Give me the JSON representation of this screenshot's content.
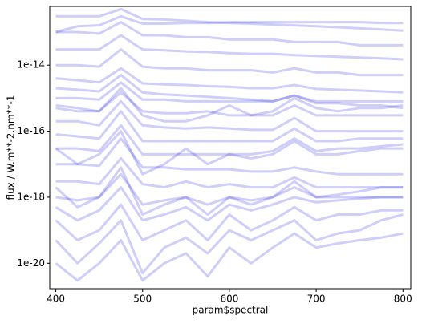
{
  "chart_data": {
    "type": "line",
    "xlabel": "param$spectral",
    "ylabel": "flux / W.m**-2.nm**-1",
    "x": [
      400,
      425,
      450,
      475,
      500,
      525,
      550,
      575,
      600,
      625,
      650,
      675,
      700,
      725,
      750,
      775,
      800
    ],
    "xlim": [
      393,
      809
    ],
    "xticks": [
      400,
      500,
      600,
      700,
      800
    ],
    "ylim": [
      1.7e-21,
      6e-13
    ],
    "yticks": [
      1e-14,
      1e-16,
      1e-18,
      1e-20
    ],
    "log_y": true,
    "color": "#2020e0",
    "series": [
      {
        "values": [
          3e-13,
          3e-13,
          3e-13,
          5e-13,
          2.5e-13,
          2.4e-13,
          2.2e-13,
          2e-13,
          1.9e-13,
          1.8e-13,
          1.7e-13,
          1.6e-13,
          1.5e-13,
          1.4e-13,
          1.3e-13,
          1.2e-13,
          1.1e-13
        ]
      },
      {
        "values": [
          1e-13,
          1e-13,
          9e-14,
          2e-13,
          8e-14,
          8e-14,
          7e-14,
          7e-14,
          6e-14,
          6e-14,
          6e-14,
          5e-14,
          5e-14,
          5e-14,
          4e-14,
          4e-14,
          4e-14
        ]
      },
      {
        "values": [
          3e-14,
          3e-14,
          3e-14,
          8e-14,
          3e-14,
          2.8e-14,
          2.6e-14,
          2.5e-14,
          2.3e-14,
          2.2e-14,
          2.2e-14,
          2e-14,
          1.9e-14,
          1.8e-14,
          1.7e-14,
          1.6e-14,
          1.5e-14
        ]
      },
      {
        "values": [
          1e-14,
          1e-14,
          9e-15,
          3e-14,
          9e-15,
          8e-15,
          8e-15,
          7e-15,
          7e-15,
          7e-15,
          6e-15,
          8e-15,
          6e-15,
          6e-15,
          5e-15,
          5e-15,
          5e-15
        ]
      },
      {
        "values": [
          4e-15,
          3.5e-15,
          3e-15,
          8e-15,
          2.8e-15,
          2.6e-15,
          2.5e-15,
          2.3e-15,
          2.2e-15,
          2e-15,
          2e-15,
          2.5e-15,
          1.9e-15,
          1.8e-15,
          1.7e-15,
          1.6e-15,
          1.5e-15
        ]
      },
      {
        "values": [
          2e-15,
          1.8e-15,
          1.6e-15,
          5e-15,
          1.5e-15,
          1.3e-15,
          1.2e-15,
          1.1e-15,
          1e-15,
          9e-16,
          8e-16,
          1.2e-15,
          7e-16,
          7e-16,
          6e-16,
          6e-16,
          5e-16
        ]
      },
      {
        "values": [
          1e-15,
          1e-15,
          9e-16,
          3e-15,
          9e-16,
          9e-16,
          8e-16,
          8e-16,
          8e-16,
          8e-16,
          8e-16,
          1.2e-15,
          8e-16,
          8e-16,
          8e-16,
          8e-16,
          8e-16
        ]
      },
      {
        "values": [
          5e-16,
          4e-16,
          4e-16,
          1.5e-15,
          4e-16,
          3.5e-16,
          3.5e-16,
          4e-16,
          3e-16,
          3e-16,
          3e-16,
          6e-16,
          3e-16,
          3e-16,
          3e-16,
          3e-16,
          3e-16
        ]
      },
      {
        "values": [
          6e-16,
          5e-16,
          4e-16,
          2e-15,
          3e-16,
          2e-16,
          2e-16,
          3e-16,
          6e-16,
          3e-16,
          4e-16,
          1e-15,
          5e-16,
          4e-16,
          5e-16,
          5e-16,
          6e-16
        ]
      },
      {
        "values": [
          2e-16,
          2e-16,
          1.5e-16,
          8e-16,
          1.5e-16,
          1.3e-16,
          1.2e-16,
          1.3e-16,
          1.2e-16,
          1.1e-16,
          1.1e-16,
          2.5e-16,
          1e-16,
          1e-16,
          1e-16,
          1e-16,
          1e-16
        ]
      },
      {
        "values": [
          8e-17,
          7e-17,
          6e-17,
          4e-16,
          5e-17,
          5e-17,
          5e-17,
          5e-17,
          5e-17,
          5e-17,
          5e-17,
          1.2e-16,
          5e-17,
          5e-17,
          6e-17,
          6e-17,
          6e-17
        ]
      },
      {
        "values": [
          3e-17,
          3e-17,
          2.5e-17,
          1.5e-16,
          2e-17,
          2e-17,
          2e-17,
          2e-17,
          2e-17,
          2e-17,
          2.5e-17,
          6e-17,
          2.5e-17,
          3e-17,
          3e-17,
          3.5e-17,
          4e-17
        ]
      },
      {
        "values": [
          1e-17,
          1e-17,
          9e-18,
          6e-17,
          8e-18,
          8e-18,
          7e-18,
          7e-18,
          7e-18,
          6e-18,
          6e-18,
          8e-18,
          6e-18,
          5e-18,
          5e-18,
          5e-18,
          5e-18
        ]
      },
      {
        "values": [
          3e-18,
          3e-18,
          2.5e-18,
          1.5e-17,
          2.5e-18,
          2e-18,
          3e-18,
          2e-18,
          2.5e-18,
          2e-18,
          2e-18,
          4e-18,
          2e-18,
          2e-18,
          2e-18,
          2e-18,
          2e-18
        ]
      },
      {
        "values": [
          1e-18,
          8e-19,
          1e-18,
          5e-18,
          6e-19,
          8e-19,
          1e-18,
          6e-19,
          1e-18,
          8e-19,
          1e-18,
          2e-18,
          1e-18,
          1e-18,
          1e-18,
          1e-18,
          1e-18
        ]
      },
      {
        "values": [
          5e-19,
          2e-19,
          4e-19,
          2e-18,
          2e-19,
          3e-19,
          5e-19,
          2e-19,
          6e-19,
          4e-19,
          6e-19,
          1e-18,
          7e-19,
          8e-19,
          9e-19,
          1e-18,
          1e-18
        ]
      },
      {
        "values": [
          2e-19,
          5e-20,
          1e-19,
          6e-19,
          5e-20,
          1e-19,
          2e-19,
          5e-20,
          3e-19,
          1e-19,
          2e-19,
          5e-19,
          2e-19,
          3e-19,
          3e-19,
          4e-19,
          4e-19
        ]
      },
      {
        "values": [
          5e-20,
          1e-20,
          4e-20,
          2e-19,
          5e-21,
          3e-20,
          6e-20,
          2e-20,
          1e-19,
          5e-20,
          1e-19,
          2e-19,
          5e-20,
          8e-20,
          1e-19,
          2e-19,
          3e-19
        ]
      },
      {
        "values": [
          1e-20,
          3e-21,
          1e-20,
          5e-20,
          3e-21,
          1e-20,
          2e-20,
          4e-21,
          3e-20,
          1e-20,
          3e-20,
          8e-20,
          3e-20,
          4e-20,
          5e-20,
          6e-20,
          8e-20
        ]
      },
      {
        "values": [
          3e-17,
          1e-17,
          2e-17,
          1e-16,
          5e-18,
          1e-17,
          3e-17,
          1e-17,
          2e-17,
          1.5e-17,
          2e-17,
          5e-17,
          2e-17,
          2e-17,
          2.5e-17,
          3e-17,
          3e-17
        ]
      },
      {
        "values": [
          1e-13,
          1.5e-13,
          1.6e-13,
          3e-13,
          1.8e-13,
          1.8e-13,
          1.9e-13,
          1.9e-13,
          2e-13,
          2e-13,
          2e-13,
          2e-13,
          2e-13,
          2e-13,
          2e-13,
          1.9e-13,
          1.9e-13
        ]
      },
      {
        "values": [
          2e-18,
          5e-19,
          1e-18,
          8e-18,
          3e-19,
          6e-19,
          1e-18,
          3e-19,
          1e-18,
          6e-19,
          1e-18,
          3e-18,
          1e-18,
          1.2e-18,
          1.5e-18,
          2e-18,
          2e-18
        ]
      }
    ]
  }
}
